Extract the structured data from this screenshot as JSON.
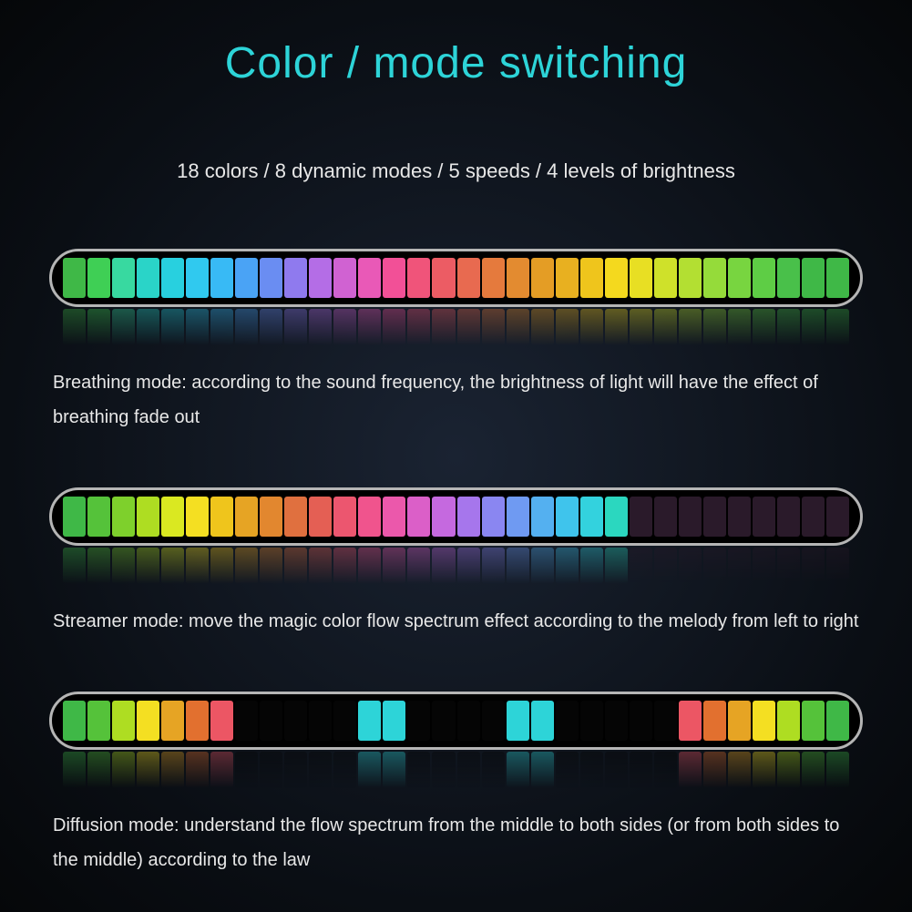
{
  "title": "Color / mode switching",
  "title_color": "#2dd4d8",
  "subtitle": "18 colors / 8 dynamic modes / 5 speeds / 4 levels of brightness",
  "text_color": "#e8e8e8",
  "bars": {
    "bar1": {
      "segments": [
        "#3fb847",
        "#3fcf55",
        "#38d9a0",
        "#2ad4c8",
        "#28d0df",
        "#30c9ef",
        "#38baf5",
        "#4aa3f5",
        "#6a8df2",
        "#8f7aee",
        "#b46de6",
        "#d062d2",
        "#e959b7",
        "#f25097",
        "#f0547a",
        "#ec5c64",
        "#e86a50",
        "#e57a3d",
        "#e38b30",
        "#e49d25",
        "#e8b020",
        "#efc51c",
        "#f4d91e",
        "#e8df23",
        "#cfe12a",
        "#b3df32",
        "#95db3a",
        "#78d540",
        "#5ecd45",
        "#49c04a",
        "#3fb847",
        "#3fb847"
      ],
      "desc": "Breathing mode: according to the sound frequency, the brightness of light will have the effect of breathing fade out"
    },
    "bar2": {
      "segments": [
        "#3fb847",
        "#55c23a",
        "#7ed02c",
        "#aedd22",
        "#dae821",
        "#f4df22",
        "#efc51c",
        "#e6a424",
        "#e2872f",
        "#e0703f",
        "#e45f54",
        "#ec566f",
        "#f0548d",
        "#eb58ab",
        "#db5fc8",
        "#c569df",
        "#a676ec",
        "#8a86f1",
        "#6f9af2",
        "#54b0f0",
        "#3fc4ec",
        "#33d2de",
        "#2bd7bf",
        "#2a1a2a",
        "#2a1a2a",
        "#2a1a2a",
        "#2a1a2a",
        "#2a1a2a",
        "#2a1a2a",
        "#2a1a2a",
        "#2a1a2a",
        "#2a1a2a"
      ],
      "desc": "Streamer mode: move the magic color flow spectrum effect according to the melody from left to right"
    },
    "bar3": {
      "segments": [
        "#3fb847",
        "#55c23a",
        "#aedd22",
        "#f4df22",
        "#e6a424",
        "#e2702f",
        "#ec5664",
        "#050505",
        "#050505",
        "#050505",
        "#050505",
        "#050505",
        "#2dd4d8",
        "#2dd4d8",
        "#050505",
        "#050505",
        "#050505",
        "#050505",
        "#2dd4d8",
        "#2dd4d8",
        "#050505",
        "#050505",
        "#050505",
        "#050505",
        "#050505",
        "#ec5664",
        "#e2702f",
        "#e6a424",
        "#f4df22",
        "#aedd22",
        "#55c23a",
        "#3fb847"
      ],
      "desc": "Diffusion mode: understand the flow spectrum from the middle to both sides (or from both sides to the middle) according to the law"
    }
  },
  "bar_border_color": "#b5b5b5",
  "background": {
    "center": "#1a2332",
    "edge": "#050709"
  }
}
